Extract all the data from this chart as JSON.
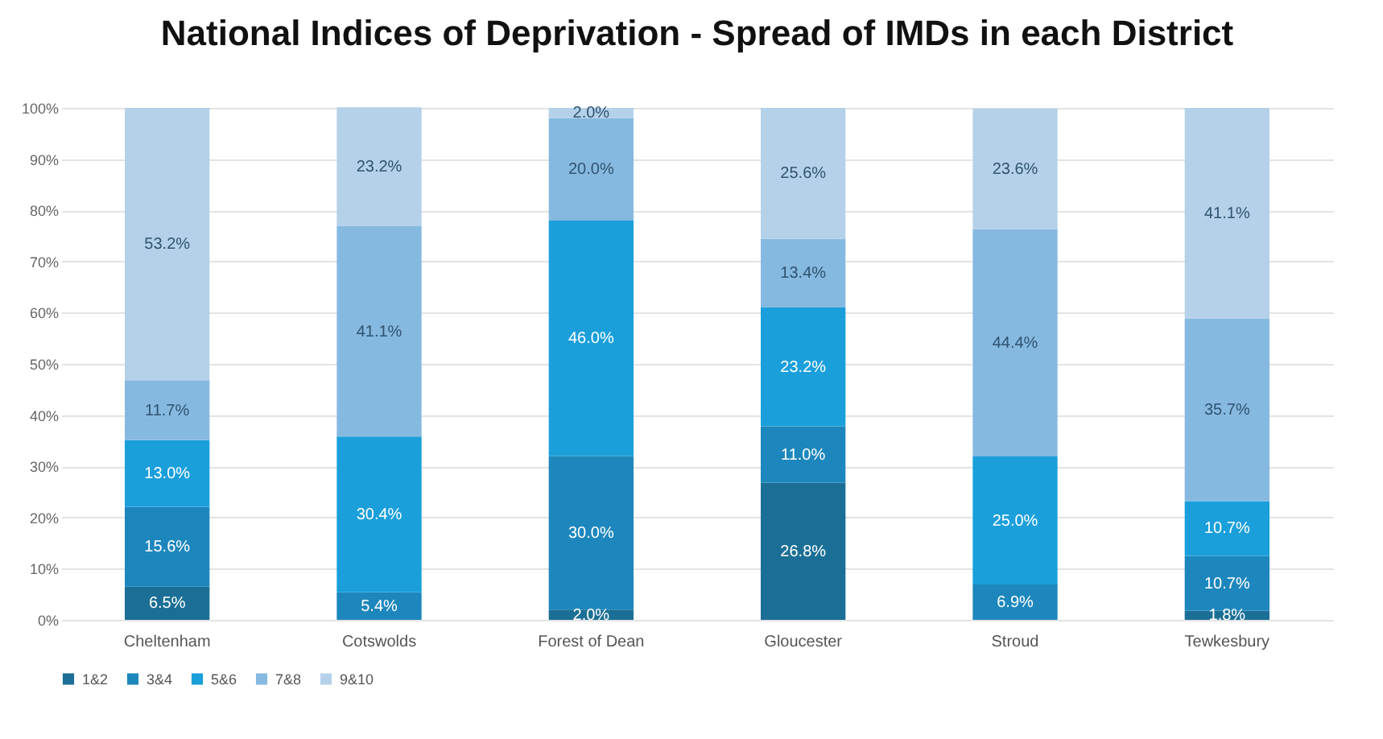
{
  "chart_data": {
    "type": "bar",
    "title": "National Indices of Deprivation - Spread of IMDs in each District",
    "categories": [
      "Cheltenham",
      "Cotswolds",
      "Forest of Dean",
      "Gloucester",
      "Stroud",
      "Tewkesbury"
    ],
    "stacked": true,
    "legend": "bottom",
    "grid": "y",
    "ylim": [
      0,
      100
    ],
    "yticks": [
      {
        "value": 0,
        "label": "0%"
      },
      {
        "value": 10,
        "label": "10%"
      },
      {
        "value": 20,
        "label": "20%"
      },
      {
        "value": 30,
        "label": "30%"
      },
      {
        "value": 40,
        "label": "40%"
      },
      {
        "value": 50,
        "label": "50%"
      },
      {
        "value": 60,
        "label": "60%"
      },
      {
        "value": 70,
        "label": "70%"
      },
      {
        "value": 80,
        "label": "80%"
      },
      {
        "value": 90,
        "label": "90%"
      },
      {
        "value": 100,
        "label": "100%"
      }
    ],
    "series": [
      {
        "name": "1&2",
        "color": "#1b6f96",
        "values": [
          6.5,
          0,
          2.0,
          26.8,
          0,
          1.8
        ],
        "value_labels": [
          "6.5%",
          null,
          "2.0%",
          "26.8%",
          null,
          "1.8%"
        ]
      },
      {
        "name": "3&4",
        "color": "#1d87bd",
        "values": [
          15.6,
          5.4,
          30.0,
          11.0,
          6.9,
          10.7
        ],
        "value_labels": [
          "15.6%",
          "5.4%",
          "30.0%",
          "11.0%",
          "6.9%",
          "10.7%"
        ]
      },
      {
        "name": "5&6",
        "color": "#1a9fdb",
        "values": [
          13.0,
          30.4,
          46.0,
          23.2,
          25.0,
          10.7
        ],
        "value_labels": [
          "13.0%",
          "30.4%",
          "46.0%",
          "23.2%",
          "25.0%",
          "10.7%"
        ]
      },
      {
        "name": "7&8",
        "color": "#86b9e0",
        "values": [
          11.7,
          41.1,
          20.0,
          13.4,
          44.4,
          35.7
        ],
        "value_labels": [
          "11.7%",
          "41.1%",
          "20.0%",
          "13.4%",
          "44.4%",
          "35.7%"
        ]
      },
      {
        "name": "9&10",
        "color": "#b5d1ea",
        "values": [
          53.2,
          23.2,
          2.0,
          25.6,
          23.6,
          41.1
        ],
        "value_labels": [
          "53.2%",
          "23.2%",
          "2.0%",
          "25.6%",
          "23.6%",
          "41.1%"
        ]
      }
    ]
  }
}
